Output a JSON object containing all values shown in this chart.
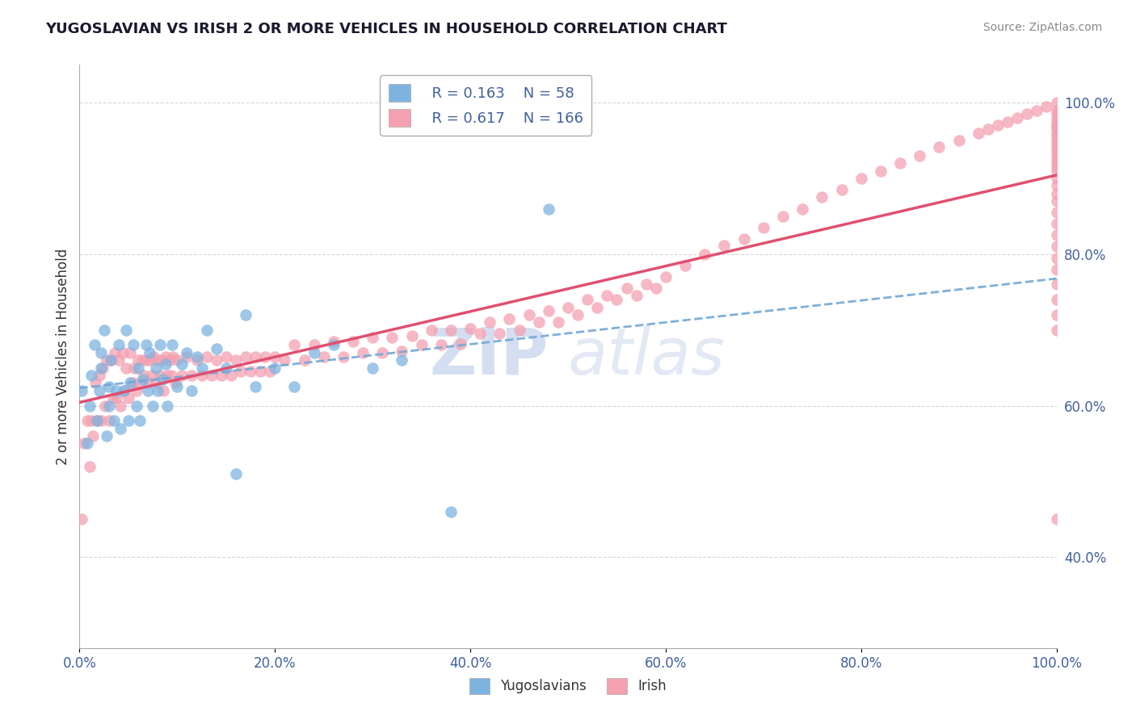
{
  "title": "YUGOSLAVIAN VS IRISH 2 OR MORE VEHICLES IN HOUSEHOLD CORRELATION CHART",
  "source": "Source: ZipAtlas.com",
  "ylabel": "2 or more Vehicles in Household",
  "legend_label_1": "Yugoslavians",
  "legend_label_2": "Irish",
  "R1": 0.163,
  "N1": 58,
  "R2": 0.617,
  "N2": 166,
  "color1": "#7eb3e0",
  "color2": "#f4a0b0",
  "trendline1_color": "#6fa8d6",
  "trendline2_color": "#e05070",
  "background": "#ffffff",
  "watermark_zip": "ZIP",
  "watermark_atlas": "atlas",
  "watermark_color": "#c8d8f0",
  "xlim": [
    0.0,
    1.0
  ],
  "ylim": [
    0.28,
    1.05
  ],
  "xticks": [
    0.0,
    0.2,
    0.4,
    0.6,
    0.8,
    1.0
  ],
  "yticks_right": [
    0.4,
    0.6,
    0.8,
    1.0
  ],
  "grid_color": "#cccccc",
  "yug_x": [
    0.002,
    0.008,
    0.01,
    0.012,
    0.015,
    0.018,
    0.02,
    0.022,
    0.022,
    0.025,
    0.028,
    0.03,
    0.03,
    0.032,
    0.035,
    0.038,
    0.04,
    0.042,
    0.045,
    0.048,
    0.05,
    0.052,
    0.055,
    0.058,
    0.06,
    0.062,
    0.065,
    0.068,
    0.07,
    0.072,
    0.075,
    0.078,
    0.08,
    0.082,
    0.085,
    0.088,
    0.09,
    0.095,
    0.1,
    0.105,
    0.11,
    0.115,
    0.12,
    0.125,
    0.13,
    0.14,
    0.15,
    0.16,
    0.17,
    0.18,
    0.2,
    0.22,
    0.24,
    0.26,
    0.3,
    0.33,
    0.38,
    0.48
  ],
  "yug_y": [
    0.62,
    0.55,
    0.6,
    0.64,
    0.68,
    0.58,
    0.62,
    0.65,
    0.67,
    0.7,
    0.56,
    0.6,
    0.625,
    0.66,
    0.58,
    0.62,
    0.68,
    0.57,
    0.62,
    0.7,
    0.58,
    0.63,
    0.68,
    0.6,
    0.65,
    0.58,
    0.635,
    0.68,
    0.62,
    0.67,
    0.6,
    0.65,
    0.62,
    0.68,
    0.635,
    0.655,
    0.6,
    0.68,
    0.625,
    0.655,
    0.67,
    0.62,
    0.665,
    0.65,
    0.7,
    0.675,
    0.65,
    0.51,
    0.72,
    0.625,
    0.65,
    0.625,
    0.67,
    0.68,
    0.65,
    0.66,
    0.46,
    0.86
  ],
  "irish_x": [
    0.002,
    0.005,
    0.008,
    0.01,
    0.012,
    0.014,
    0.016,
    0.018,
    0.02,
    0.022,
    0.024,
    0.026,
    0.028,
    0.03,
    0.032,
    0.034,
    0.036,
    0.038,
    0.04,
    0.042,
    0.044,
    0.046,
    0.048,
    0.05,
    0.052,
    0.054,
    0.056,
    0.058,
    0.06,
    0.062,
    0.064,
    0.066,
    0.068,
    0.07,
    0.072,
    0.074,
    0.076,
    0.078,
    0.08,
    0.082,
    0.084,
    0.086,
    0.088,
    0.09,
    0.092,
    0.094,
    0.096,
    0.098,
    0.1,
    0.105,
    0.11,
    0.115,
    0.12,
    0.125,
    0.13,
    0.135,
    0.14,
    0.145,
    0.15,
    0.155,
    0.16,
    0.165,
    0.17,
    0.175,
    0.18,
    0.185,
    0.19,
    0.195,
    0.2,
    0.21,
    0.22,
    0.23,
    0.24,
    0.25,
    0.26,
    0.27,
    0.28,
    0.29,
    0.3,
    0.31,
    0.32,
    0.33,
    0.34,
    0.35,
    0.36,
    0.37,
    0.38,
    0.39,
    0.4,
    0.41,
    0.42,
    0.43,
    0.44,
    0.45,
    0.46,
    0.47,
    0.48,
    0.49,
    0.5,
    0.51,
    0.52,
    0.53,
    0.54,
    0.55,
    0.56,
    0.57,
    0.58,
    0.59,
    0.6,
    0.62,
    0.64,
    0.66,
    0.68,
    0.7,
    0.72,
    0.74,
    0.76,
    0.78,
    0.8,
    0.82,
    0.84,
    0.86,
    0.88,
    0.9,
    0.92,
    0.93,
    0.94,
    0.95,
    0.96,
    0.97,
    0.98,
    0.99,
    1.0,
    1.0,
    1.0,
    1.0,
    1.0,
    1.0,
    1.0,
    1.0,
    1.0,
    1.0,
    1.0,
    1.0,
    1.0,
    1.0,
    1.0,
    1.0,
    1.0,
    1.0,
    1.0,
    1.0,
    1.0,
    1.0,
    1.0,
    1.0,
    1.0,
    1.0,
    1.0,
    1.0,
    1.0,
    1.0,
    1.0,
    1.0,
    1.0,
    1.0
  ],
  "irish_y": [
    0.45,
    0.55,
    0.58,
    0.52,
    0.58,
    0.56,
    0.63,
    0.58,
    0.64,
    0.58,
    0.65,
    0.6,
    0.66,
    0.58,
    0.66,
    0.61,
    0.67,
    0.61,
    0.66,
    0.6,
    0.67,
    0.62,
    0.65,
    0.61,
    0.67,
    0.63,
    0.65,
    0.62,
    0.66,
    0.63,
    0.66,
    0.64,
    0.66,
    0.63,
    0.66,
    0.64,
    0.665,
    0.63,
    0.66,
    0.64,
    0.66,
    0.62,
    0.665,
    0.64,
    0.66,
    0.64,
    0.665,
    0.63,
    0.66,
    0.64,
    0.665,
    0.64,
    0.66,
    0.64,
    0.665,
    0.64,
    0.66,
    0.64,
    0.665,
    0.64,
    0.66,
    0.645,
    0.665,
    0.645,
    0.665,
    0.645,
    0.665,
    0.645,
    0.665,
    0.66,
    0.68,
    0.66,
    0.68,
    0.665,
    0.685,
    0.665,
    0.685,
    0.67,
    0.69,
    0.67,
    0.69,
    0.672,
    0.692,
    0.68,
    0.7,
    0.68,
    0.7,
    0.682,
    0.702,
    0.695,
    0.71,
    0.695,
    0.715,
    0.7,
    0.72,
    0.71,
    0.725,
    0.71,
    0.73,
    0.72,
    0.74,
    0.73,
    0.745,
    0.74,
    0.755,
    0.745,
    0.76,
    0.755,
    0.77,
    0.785,
    0.8,
    0.812,
    0.82,
    0.835,
    0.85,
    0.86,
    0.875,
    0.885,
    0.9,
    0.91,
    0.92,
    0.93,
    0.942,
    0.95,
    0.96,
    0.965,
    0.97,
    0.975,
    0.98,
    0.985,
    0.99,
    0.995,
    1.0,
    0.99,
    0.985,
    0.98,
    0.975,
    0.97,
    0.968,
    0.965,
    0.96,
    0.955,
    0.95,
    0.945,
    0.94,
    0.935,
    0.93,
    0.925,
    0.92,
    0.915,
    0.91,
    0.9,
    0.89,
    0.88,
    0.87,
    0.855,
    0.84,
    0.825,
    0.81,
    0.795,
    0.78,
    0.76,
    0.74,
    0.72,
    0.7,
    0.45
  ]
}
